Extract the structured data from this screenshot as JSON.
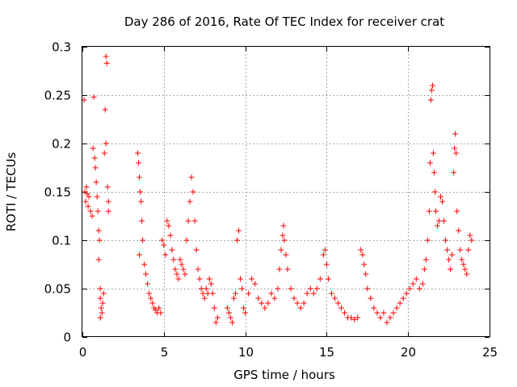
{
  "chart_data": {
    "type": "scatter",
    "title": "Day 286 of 2016, Rate Of TEC Index for receiver crat",
    "xlabel": "GPS time / hours",
    "ylabel": "ROTI / TECUs",
    "xlim": [
      0,
      25
    ],
    "ylim": [
      0,
      0.3
    ],
    "x_ticks": [
      0,
      5,
      10,
      15,
      20,
      25
    ],
    "x_tick_labels": [
      "0",
      "5",
      "10",
      "15",
      "20",
      "25"
    ],
    "y_ticks": [
      0,
      0.05,
      0.1,
      0.15,
      0.2,
      0.25,
      0.3
    ],
    "y_tick_labels": [
      "0",
      "0.05",
      "0.1",
      "0.15",
      "0.2",
      "0.25",
      "0.3"
    ],
    "grid": true,
    "marker": "+",
    "color": "#ff0000",
    "series": [
      {
        "name": "ROTI",
        "points": [
          [
            0.1,
            0.245
          ],
          [
            0.15,
            0.15
          ],
          [
            0.2,
            0.14
          ],
          [
            0.25,
            0.155
          ],
          [
            0.3,
            0.148
          ],
          [
            0.35,
            0.135
          ],
          [
            0.4,
            0.145
          ],
          [
            0.5,
            0.13
          ],
          [
            0.6,
            0.125
          ],
          [
            0.65,
            0.195
          ],
          [
            0.7,
            0.248
          ],
          [
            0.75,
            0.185
          ],
          [
            0.8,
            0.175
          ],
          [
            0.85,
            0.16
          ],
          [
            0.9,
            0.145
          ],
          [
            0.95,
            0.13
          ],
          [
            1.0,
            0.11
          ],
          [
            1.05,
            0.1
          ],
          [
            1.0,
            0.08
          ],
          [
            1.1,
            0.05
          ],
          [
            1.1,
            0.04
          ],
          [
            1.15,
            0.03
          ],
          [
            1.2,
            0.025
          ],
          [
            1.1,
            0.02
          ],
          [
            1.25,
            0.035
          ],
          [
            1.3,
            0.045
          ],
          [
            1.35,
            0.19
          ],
          [
            1.4,
            0.235
          ],
          [
            1.45,
            0.29
          ],
          [
            1.5,
            0.283
          ],
          [
            1.45,
            0.2
          ],
          [
            1.55,
            0.155
          ],
          [
            1.6,
            0.14
          ],
          [
            1.6,
            0.13
          ],
          [
            3.4,
            0.19
          ],
          [
            3.45,
            0.18
          ],
          [
            3.5,
            0.165
          ],
          [
            3.55,
            0.15
          ],
          [
            3.6,
            0.14
          ],
          [
            3.65,
            0.12
          ],
          [
            3.7,
            0.1
          ],
          [
            3.5,
            0.085
          ],
          [
            3.8,
            0.075
          ],
          [
            3.9,
            0.065
          ],
          [
            4.0,
            0.055
          ],
          [
            4.1,
            0.045
          ],
          [
            4.2,
            0.04
          ],
          [
            4.3,
            0.035
          ],
          [
            4.4,
            0.03
          ],
          [
            4.5,
            0.028
          ],
          [
            4.6,
            0.025
          ],
          [
            4.7,
            0.03
          ],
          [
            4.8,
            0.025
          ],
          [
            4.9,
            0.1
          ],
          [
            5.0,
            0.095
          ],
          [
            5.1,
            0.085
          ],
          [
            5.2,
            0.12
          ],
          [
            5.3,
            0.115
          ],
          [
            5.4,
            0.105
          ],
          [
            5.5,
            0.09
          ],
          [
            5.6,
            0.08
          ],
          [
            5.7,
            0.07
          ],
          [
            5.8,
            0.065
          ],
          [
            5.9,
            0.06
          ],
          [
            6.0,
            0.08
          ],
          [
            6.1,
            0.075
          ],
          [
            6.2,
            0.07
          ],
          [
            6.3,
            0.065
          ],
          [
            6.4,
            0.1
          ],
          [
            6.5,
            0.12
          ],
          [
            6.6,
            0.14
          ],
          [
            6.7,
            0.165
          ],
          [
            6.8,
            0.15
          ],
          [
            6.9,
            0.12
          ],
          [
            7.0,
            0.09
          ],
          [
            7.1,
            0.07
          ],
          [
            7.2,
            0.06
          ],
          [
            7.3,
            0.05
          ],
          [
            7.4,
            0.045
          ],
          [
            7.5,
            0.04
          ],
          [
            7.6,
            0.05
          ],
          [
            7.7,
            0.045
          ],
          [
            7.8,
            0.06
          ],
          [
            7.9,
            0.055
          ],
          [
            8.0,
            0.045
          ],
          [
            8.1,
            0.03
          ],
          [
            8.2,
            0.015
          ],
          [
            8.3,
            0.02
          ],
          [
            8.9,
            0.03
          ],
          [
            9.0,
            0.025
          ],
          [
            9.1,
            0.02
          ],
          [
            9.2,
            0.015
          ],
          [
            9.3,
            0.04
          ],
          [
            9.4,
            0.045
          ],
          [
            9.5,
            0.1
          ],
          [
            9.6,
            0.11
          ],
          [
            9.7,
            0.06
          ],
          [
            9.8,
            0.05
          ],
          [
            9.9,
            0.03
          ],
          [
            10.0,
            0.025
          ],
          [
            10.2,
            0.045
          ],
          [
            10.4,
            0.06
          ],
          [
            10.6,
            0.055
          ],
          [
            10.8,
            0.04
          ],
          [
            11.0,
            0.035
          ],
          [
            11.2,
            0.03
          ],
          [
            11.4,
            0.035
          ],
          [
            11.6,
            0.045
          ],
          [
            11.8,
            0.04
          ],
          [
            12.0,
            0.05
          ],
          [
            12.1,
            0.07
          ],
          [
            12.2,
            0.09
          ],
          [
            12.3,
            0.105
          ],
          [
            12.35,
            0.115
          ],
          [
            12.4,
            0.1
          ],
          [
            12.5,
            0.085
          ],
          [
            12.6,
            0.07
          ],
          [
            12.8,
            0.05
          ],
          [
            13.0,
            0.04
          ],
          [
            13.2,
            0.035
          ],
          [
            13.4,
            0.03
          ],
          [
            13.6,
            0.035
          ],
          [
            13.8,
            0.045
          ],
          [
            14.0,
            0.05
          ],
          [
            14.2,
            0.045
          ],
          [
            14.4,
            0.05
          ],
          [
            14.6,
            0.06
          ],
          [
            14.8,
            0.085
          ],
          [
            14.9,
            0.09
          ],
          [
            15.0,
            0.075
          ],
          [
            15.1,
            0.06
          ],
          [
            15.3,
            0.045
          ],
          [
            15.5,
            0.04
          ],
          [
            15.7,
            0.035
          ],
          [
            15.9,
            0.03
          ],
          [
            16.1,
            0.025
          ],
          [
            16.3,
            0.02
          ],
          [
            16.5,
            0.02
          ],
          [
            16.7,
            0.018
          ],
          [
            16.9,
            0.02
          ],
          [
            17.1,
            0.09
          ],
          [
            17.2,
            0.085
          ],
          [
            17.3,
            0.075
          ],
          [
            17.4,
            0.065
          ],
          [
            17.5,
            0.05
          ],
          [
            17.7,
            0.04
          ],
          [
            17.9,
            0.03
          ],
          [
            18.1,
            0.025
          ],
          [
            18.3,
            0.02
          ],
          [
            18.5,
            0.025
          ],
          [
            18.7,
            0.015
          ],
          [
            18.9,
            0.02
          ],
          [
            19.1,
            0.025
          ],
          [
            19.3,
            0.03
          ],
          [
            19.5,
            0.035
          ],
          [
            19.7,
            0.04
          ],
          [
            19.9,
            0.045
          ],
          [
            20.1,
            0.05
          ],
          [
            20.3,
            0.055
          ],
          [
            20.5,
            0.06
          ],
          [
            20.7,
            0.05
          ],
          [
            20.9,
            0.055
          ],
          [
            21.0,
            0.07
          ],
          [
            21.1,
            0.08
          ],
          [
            21.2,
            0.1
          ],
          [
            21.3,
            0.13
          ],
          [
            21.35,
            0.18
          ],
          [
            21.4,
            0.245
          ],
          [
            21.45,
            0.255
          ],
          [
            21.5,
            0.26
          ],
          [
            21.55,
            0.19
          ],
          [
            21.6,
            0.17
          ],
          [
            21.65,
            0.15
          ],
          [
            21.7,
            0.13
          ],
          [
            21.8,
            0.115
          ],
          [
            21.9,
            0.12
          ],
          [
            22.0,
            0.145
          ],
          [
            22.1,
            0.14
          ],
          [
            22.2,
            0.12
          ],
          [
            22.3,
            0.1
          ],
          [
            22.4,
            0.09
          ],
          [
            22.5,
            0.08
          ],
          [
            22.6,
            0.07
          ],
          [
            22.7,
            0.085
          ],
          [
            22.8,
            0.17
          ],
          [
            22.85,
            0.195
          ],
          [
            22.9,
            0.21
          ],
          [
            22.95,
            0.19
          ],
          [
            23.0,
            0.13
          ],
          [
            23.1,
            0.11
          ],
          [
            23.2,
            0.09
          ],
          [
            23.3,
            0.08
          ],
          [
            23.4,
            0.075
          ],
          [
            23.5,
            0.07
          ],
          [
            23.6,
            0.065
          ],
          [
            23.7,
            0.09
          ],
          [
            23.8,
            0.105
          ],
          [
            23.9,
            0.1
          ]
        ]
      }
    ]
  }
}
